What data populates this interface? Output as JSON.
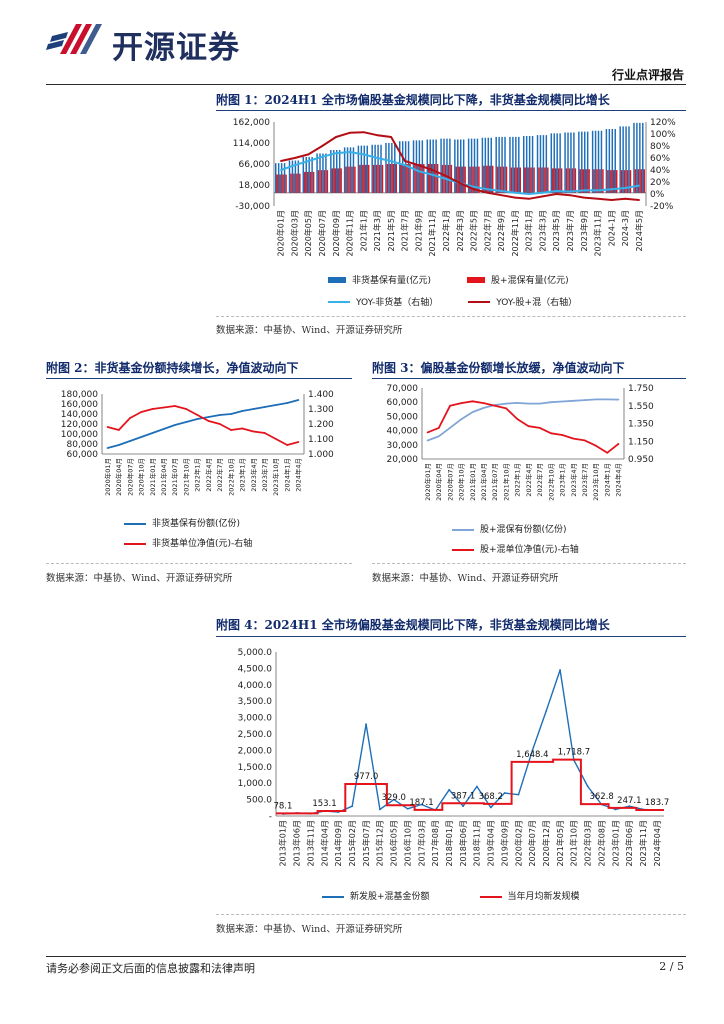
{
  "header": {
    "brand": "开源证券",
    "report_type": "行业点评报告"
  },
  "colors": {
    "brand": "#c8102e",
    "navy": "#1f3f7a",
    "blue": "#1f6fb8",
    "lightblue": "#38b0e8",
    "red": "#e3141c",
    "darkred": "#b30e16"
  },
  "figures": {
    "fig1": {
      "title": "附图 1：2024H1 全市场偏股基金规模同比下降，非货基金规模同比增长",
      "source": "数据来源：中基协、Wind、开源证券研究所"
    },
    "fig2": {
      "title": "附图 2：非货基金份额持续增长，净值波动向下",
      "source": "数据来源：中基协、Wind、开源证券研究所"
    },
    "fig3": {
      "title": "附图 3：偏股基金份额增长放缓，净值波动向下",
      "source": "数据来源：中基协、Wind、开源证券研究所"
    },
    "fig4": {
      "title": "附图 4：2024H1 全市场偏股基金规模同比下降，非货基金规模同比增长",
      "source": "数据来源：中基协、Wind、开源证券研究所"
    }
  },
  "footer": {
    "disclaimer": "请务必参阅正文后面的信息披露和法律声明",
    "page": "2 / 5"
  },
  "chart_data": [
    {
      "id": "fig1",
      "type": "bar",
      "categories": [
        "2020年01月",
        "2020年03月",
        "2020年05月",
        "2020年07月",
        "2020年09月",
        "2020年11月",
        "2021年1月",
        "2021年3月",
        "2021年5月",
        "2021年7月",
        "2021年9月",
        "2021年11月",
        "2022年1月",
        "2022年3月",
        "2022年5月",
        "2022年7月",
        "2022年9月",
        "2022年11月",
        "2023年1月",
        "2023年3月",
        "2023年5月",
        "2023年7月",
        "2023年9月",
        "2023年11月",
        "2024-1月",
        "2024-3月",
        "2024年5月"
      ],
      "y_left": {
        "ticks": [
          "162,000",
          "114,000",
          "66,000",
          "18,000",
          "-30,000"
        ],
        "min": -30000,
        "max": 162000
      },
      "y_right": {
        "ticks": [
          "120%",
          "100%",
          "80%",
          "60%",
          "40%",
          "20%",
          "0%",
          "-20%"
        ],
        "min": -20,
        "max": 120
      },
      "series": [
        {
          "name": "非货基保有量(亿元)",
          "type": "bar",
          "axis": "left",
          "values": [
            68000,
            74000,
            82000,
            90000,
            98000,
            104000,
            108000,
            110000,
            114000,
            118000,
            120000,
            122000,
            124000,
            122000,
            124000,
            126000,
            128000,
            128000,
            130000,
            132000,
            136000,
            138000,
            140000,
            142000,
            146000,
            152000,
            160000
          ]
        },
        {
          "name": "股+混保有量(亿元)",
          "type": "bar",
          "axis": "left",
          "values": [
            42000,
            44000,
            48000,
            52000,
            56000,
            60000,
            64000,
            64000,
            66000,
            66000,
            66000,
            66000,
            64000,
            60000,
            60000,
            62000,
            60000,
            58000,
            58000,
            58000,
            56000,
            56000,
            54000,
            54000,
            52000,
            52000,
            54000
          ]
        },
        {
          "name": "YOY-非货基（右轴）",
          "type": "line",
          "axis": "right",
          "values": [
            40,
            48,
            55,
            62,
            68,
            70,
            66,
            60,
            55,
            48,
            38,
            32,
            25,
            18,
            12,
            8,
            5,
            2,
            0,
            2,
            5,
            4,
            6,
            6,
            8,
            10,
            14
          ]
        },
        {
          "name": "YOY-股+混（右轴）",
          "type": "line",
          "axis": "right",
          "values": [
            55,
            60,
            66,
            80,
            95,
            102,
            103,
            98,
            95,
            55,
            48,
            40,
            30,
            18,
            8,
            2,
            -2,
            -6,
            -8,
            -4,
            0,
            -2,
            -6,
            -8,
            -10,
            -8,
            -10
          ]
        }
      ]
    },
    {
      "id": "fig2",
      "type": "line",
      "categories": [
        "2020年01月",
        "2020年04月",
        "2020年07月",
        "2020年10月",
        "2021年01月",
        "2021年04月",
        "2021年07月",
        "2021年10月",
        "2022年1月",
        "2022年4月",
        "2022年7月",
        "2022年10月",
        "2023年1月",
        "2023年4月",
        "2023年7月",
        "2023年10月",
        "2024年1月",
        "2024年4月"
      ],
      "y_left": {
        "ticks": [
          "180,000",
          "160,000",
          "140,000",
          "120,000",
          "100,000",
          "80,000",
          "60,000"
        ],
        "min": 60000,
        "max": 180000
      },
      "y_right": {
        "ticks": [
          "1.400",
          "1.300",
          "1.200",
          "1.100",
          "1.000"
        ],
        "min": 1.0,
        "max": 1.4
      },
      "series": [
        {
          "name": "非货基保有份额(亿份)",
          "axis": "left",
          "values": [
            72000,
            78000,
            86000,
            94000,
            102000,
            110000,
            118000,
            124000,
            130000,
            134000,
            138000,
            140000,
            146000,
            150000,
            154000,
            158000,
            162000,
            168000
          ]
        },
        {
          "name": "非货基单位净值(元)-右轴",
          "axis": "right",
          "values": [
            1.18,
            1.16,
            1.24,
            1.28,
            1.3,
            1.31,
            1.32,
            1.3,
            1.26,
            1.22,
            1.2,
            1.16,
            1.17,
            1.15,
            1.14,
            1.1,
            1.06,
            1.08
          ]
        }
      ]
    },
    {
      "id": "fig3",
      "type": "line",
      "categories": [
        "2020年01月",
        "2020年04月",
        "2020年07月",
        "2020年10月",
        "2021年01月",
        "2021年04月",
        "2021年07月",
        "2021年10月",
        "2022年1月",
        "2022年4月",
        "2022年7月",
        "2022年10月",
        "2023年1月",
        "2023年4月",
        "2023年7月",
        "2023年10月",
        "2024年1月",
        "2024年4月"
      ],
      "y_left": {
        "ticks": [
          "70,000",
          "60,000",
          "50,000",
          "40,000",
          "30,000",
          "20,000"
        ],
        "min": 20000,
        "max": 70000
      },
      "y_right": {
        "ticks": [
          "1.750",
          "1.550",
          "1.350",
          "1.150",
          "0.950"
        ],
        "min": 0.95,
        "max": 1.75
      },
      "series": [
        {
          "name": "股+混保有份额(亿份)",
          "axis": "left",
          "values": [
            33000,
            36000,
            42000,
            48000,
            53000,
            56000,
            58000,
            59000,
            59500,
            59000,
            59000,
            60000,
            60500,
            61000,
            61500,
            62000,
            62000,
            61800
          ]
        },
        {
          "name": "股+混单位净值(元)-右轴",
          "axis": "right",
          "values": [
            1.25,
            1.3,
            1.55,
            1.58,
            1.6,
            1.58,
            1.55,
            1.52,
            1.4,
            1.32,
            1.3,
            1.24,
            1.22,
            1.18,
            1.16,
            1.1,
            1.02,
            1.12
          ]
        }
      ]
    },
    {
      "id": "fig4",
      "type": "line",
      "categories": [
        "2013年01月",
        "2013年06月",
        "2013年11月",
        "2014年04月",
        "2014年09月",
        "2015年02月",
        "2015年07月",
        "2015年12月",
        "2016年05月",
        "2016年10月",
        "2017年03月",
        "2017年08月",
        "2018年01月",
        "2018年06月",
        "2018年11月",
        "2019年04月",
        "2019年09月",
        "2020年02月",
        "2020年07月",
        "2020年12月",
        "2021年05月",
        "2021年10月",
        "2022年03月",
        "2022年08月",
        "2023年01月",
        "2023年06月",
        "2023年11月",
        "2024年04月"
      ],
      "y_left": {
        "ticks": [
          "5,000.0",
          "4,500.0",
          "4,000.0",
          "3,500.0",
          "3,000.0",
          "2,500.0",
          "2,000.0",
          "1,500.0",
          "1,000.0",
          "500.0",
          "-"
        ],
        "min": 0,
        "max": 5000
      },
      "annotations": [
        "78.1",
        "153.1",
        "977.0",
        "329.0",
        "187.1",
        "387.1",
        "368.2",
        "1,648.4",
        "1,718.7",
        "362.8",
        "247.1",
        "183.7"
      ],
      "series": [
        {
          "name": "新发股+混基金份额",
          "values": [
            60,
            90,
            70,
            150,
            120,
            300,
            2800,
            200,
            500,
            220,
            350,
            180,
            800,
            300,
            900,
            260,
            700,
            650,
            2000,
            3200,
            4450,
            1700,
            900,
            350,
            200,
            300,
            200,
            180
          ]
        },
        {
          "name": "当年月均新发规模",
          "values": [
            78.1,
            78.1,
            78.1,
            153.1,
            153.1,
            977.0,
            977.0,
            977.0,
            329.0,
            329.0,
            187.1,
            187.1,
            387.1,
            387.1,
            387.1,
            368.2,
            368.2,
            1648.4,
            1648.4,
            1648.4,
            1718.7,
            1718.7,
            362.8,
            362.8,
            247.1,
            247.1,
            183.7,
            183.7
          ]
        }
      ]
    }
  ]
}
